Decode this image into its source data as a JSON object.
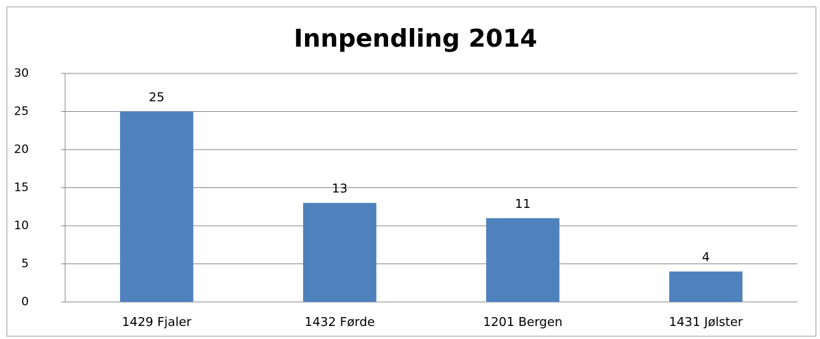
{
  "chart_data": {
    "type": "bar",
    "title": "Innpendling 2014",
    "categories": [
      "1429 Fjaler",
      "1432 Førde",
      "1201 Bergen",
      "1431 Jølster"
    ],
    "values": [
      25,
      13,
      11,
      4
    ],
    "color": "#4f81bd",
    "ylim": [
      0,
      30
    ],
    "yticks": [
      0,
      5,
      10,
      15,
      20,
      25,
      30
    ],
    "grid": true,
    "show_value_labels": true
  }
}
